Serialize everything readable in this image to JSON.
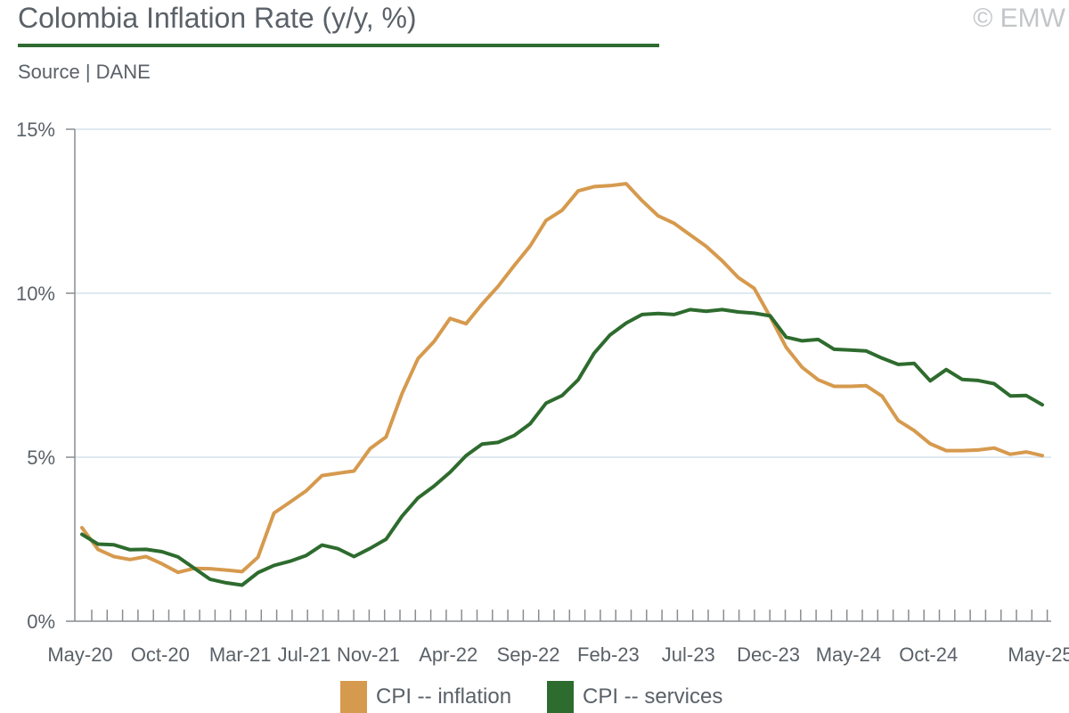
{
  "header": {
    "title": "Colombia Inflation Rate (y/y, %)",
    "source": "Source | DANE",
    "copyright": "© EMW"
  },
  "colors": {
    "inflation": "#d69a4e",
    "services": "#2e6b2e",
    "title_rule": "#2e6b2e",
    "grid": "#d6e2ec"
  },
  "chart_data": {
    "type": "line",
    "title": "Colombia Inflation Rate (y/y, %)",
    "ylabel": "",
    "xlabel": "",
    "ylim": [
      0,
      15
    ],
    "y_ticks": [
      {
        "value": 0,
        "label": "0%"
      },
      {
        "value": 5,
        "label": "5%"
      },
      {
        "value": 10,
        "label": "10%"
      },
      {
        "value": 15,
        "label": "15%"
      }
    ],
    "grid": true,
    "legend_position": "bottom",
    "x": [
      "May-20",
      "Jun-20",
      "Jul-20",
      "Aug-20",
      "Sep-20",
      "Oct-20",
      "Nov-20",
      "Dec-20",
      "Jan-21",
      "Feb-21",
      "Mar-21",
      "Apr-21",
      "May-21",
      "Jun-21",
      "Jul-21",
      "Aug-21",
      "Sep-21",
      "Oct-21",
      "Nov-21",
      "Dec-21",
      "Jan-22",
      "Feb-22",
      "Mar-22",
      "Apr-22",
      "May-22",
      "Jun-22",
      "Jul-22",
      "Aug-22",
      "Sep-22",
      "Oct-22",
      "Nov-22",
      "Dec-22",
      "Jan-23",
      "Feb-23",
      "Mar-23",
      "Apr-23",
      "May-23",
      "Jun-23",
      "Jul-23",
      "Aug-23",
      "Sep-23",
      "Oct-23",
      "Nov-23",
      "Dec-23",
      "Jan-24",
      "Feb-24",
      "Mar-24",
      "Apr-24",
      "May-24",
      "Jun-24",
      "Jul-24",
      "Aug-24",
      "Sep-24",
      "Oct-24",
      "Nov-24",
      "Dec-24",
      "Jan-25",
      "Feb-25",
      "Mar-25",
      "Apr-25",
      "May-25"
    ],
    "x_tick_labels": [
      {
        "index": 0,
        "label": "May-20"
      },
      {
        "index": 5,
        "label": "Oct-20"
      },
      {
        "index": 10,
        "label": "Mar-21"
      },
      {
        "index": 14,
        "label": "Jul-21"
      },
      {
        "index": 18,
        "label": "Nov-21"
      },
      {
        "index": 23,
        "label": "Apr-22"
      },
      {
        "index": 28,
        "label": "Sep-22"
      },
      {
        "index": 33,
        "label": "Feb-23"
      },
      {
        "index": 38,
        "label": "Jul-23"
      },
      {
        "index": 43,
        "label": "Dec-23"
      },
      {
        "index": 48,
        "label": "May-24"
      },
      {
        "index": 53,
        "label": "Oct-24"
      },
      {
        "index": 60,
        "label": "May-25"
      }
    ],
    "series": [
      {
        "name": "CPI -- inflation",
        "color": "#d69a4e",
        "values": [
          2.85,
          2.19,
          1.97,
          1.88,
          1.97,
          1.75,
          1.49,
          1.61,
          1.6,
          1.56,
          1.51,
          1.95,
          3.3,
          3.63,
          3.97,
          4.44,
          4.51,
          4.58,
          5.26,
          5.62,
          6.94,
          8.01,
          8.53,
          9.23,
          9.07,
          9.67,
          10.21,
          10.84,
          11.44,
          12.22,
          12.53,
          13.12,
          13.25,
          13.28,
          13.34,
          12.82,
          12.36,
          12.13,
          11.78,
          11.43,
          10.99,
          10.48,
          10.15,
          9.28,
          8.35,
          7.74,
          7.36,
          7.16,
          7.16,
          7.18,
          6.86,
          6.12,
          5.81,
          5.41,
          5.2,
          5.2,
          5.22,
          5.28,
          5.09,
          5.16,
          5.05
        ]
      },
      {
        "name": "CPI -- services",
        "color": "#2e6b2e",
        "values": [
          2.65,
          2.35,
          2.33,
          2.18,
          2.19,
          2.12,
          1.96,
          1.62,
          1.28,
          1.17,
          1.1,
          1.48,
          1.7,
          1.83,
          2.0,
          2.32,
          2.21,
          1.97,
          2.22,
          2.5,
          3.2,
          3.76,
          4.12,
          4.54,
          5.05,
          5.4,
          5.45,
          5.66,
          6.02,
          6.65,
          6.88,
          7.36,
          8.17,
          8.73,
          9.09,
          9.35,
          9.38,
          9.35,
          9.5,
          9.45,
          9.5,
          9.43,
          9.39,
          9.31,
          8.66,
          8.55,
          8.59,
          8.29,
          8.27,
          8.24,
          8.02,
          7.83,
          7.86,
          7.33,
          7.67,
          7.37,
          7.34,
          7.24,
          6.87,
          6.88,
          6.6
        ]
      }
    ]
  }
}
